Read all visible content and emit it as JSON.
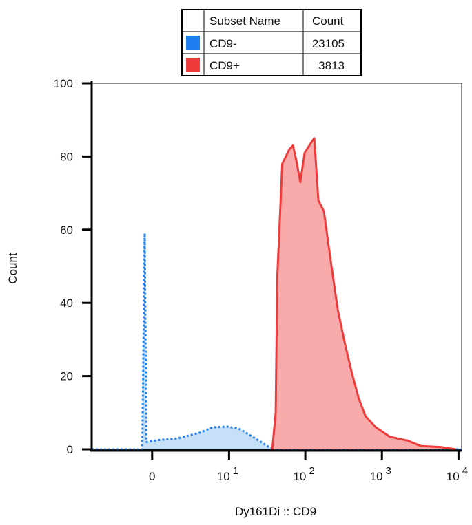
{
  "chart_data": {
    "type": "area",
    "x_label": "Dy161Di :: CD9",
    "y_label": "Count",
    "x_scale": "biexponential",
    "xlim": [
      -6,
      11000
    ],
    "xticks": [
      0,
      {
        "value": 10,
        "label": "10",
        "sup": "1"
      },
      {
        "value": 100,
        "label": "10",
        "sup": "2"
      },
      {
        "value": 1000,
        "label": "10",
        "sup": "3"
      },
      {
        "value": 10000,
        "label": "10",
        "sup": "4"
      }
    ],
    "ylim": [
      0,
      100
    ],
    "yticks": [
      0,
      20,
      40,
      60,
      80,
      100
    ],
    "legend_header": [
      "Subset Name",
      "Count"
    ],
    "series": [
      {
        "name": "CD9-",
        "count": 23105,
        "color": "#1e7ff0",
        "fill": "#c6e0f7",
        "line_style": "dotted",
        "x": [
          -6,
          -0.6,
          -0.45,
          -0.35,
          0.3,
          1.7,
          3.9,
          6,
          9.5,
          14,
          22,
          33,
          41,
          11000
        ],
        "values": [
          0,
          0,
          59,
          2,
          2.5,
          3,
          4.5,
          6,
          6.2,
          5.5,
          3,
          0.7,
          0,
          0
        ]
      },
      {
        "name": "CD9+",
        "count": 3813,
        "color": "#ee3b3b",
        "fill": "#f9abab",
        "line_style": "solid",
        "x": [
          37,
          41,
          43,
          50,
          62,
          69,
          76,
          86,
          98,
          121,
          131,
          148,
          175,
          216,
          266,
          328,
          403,
          497,
          612,
          836,
          1270,
          2140,
          3230,
          6040,
          9150
        ],
        "values": [
          0,
          10,
          47,
          78,
          82,
          83,
          79,
          73,
          81,
          84,
          85,
          68,
          65,
          51,
          38,
          29,
          21,
          14,
          9,
          6,
          3.4,
          2.4,
          0.9,
          0.6,
          0
        ]
      }
    ]
  }
}
